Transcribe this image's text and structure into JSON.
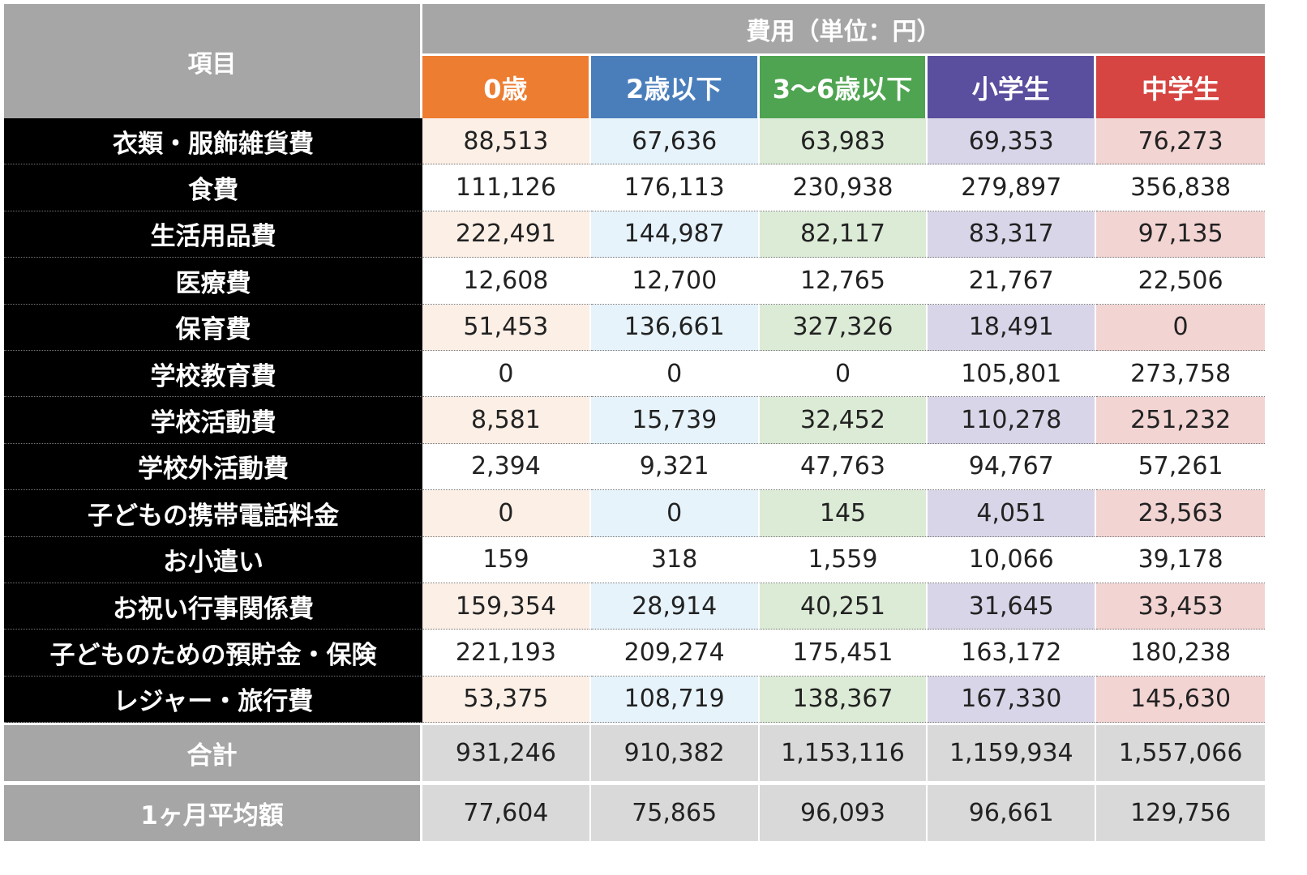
{
  "chart_data": {
    "type": "table",
    "header": {
      "item_label": "項目",
      "cost_label": "費用（単位：円）"
    },
    "columns": [
      {
        "label": "0歳",
        "header_color": "#ed7d31",
        "tint": "#fcefe6"
      },
      {
        "label": "2歳以下",
        "header_color": "#4a7ebb",
        "tint": "#e6f3fb"
      },
      {
        "label": "3〜6歳以下",
        "header_color": "#4ea450",
        "tint": "#dcebd6"
      },
      {
        "label": "小学生",
        "header_color": "#5a4e9e",
        "tint": "#d9d5e8"
      },
      {
        "label": "中学生",
        "header_color": "#d64541",
        "tint": "#f2d4d3"
      }
    ],
    "rows": [
      {
        "label": "衣類・服飾雑貨費",
        "values": [
          "88,513",
          "67,636",
          "63,983",
          "69,353",
          "76,273"
        ]
      },
      {
        "label": "食費",
        "values": [
          "111,126",
          "176,113",
          "230,938",
          "279,897",
          "356,838"
        ]
      },
      {
        "label": "生活用品費",
        "values": [
          "222,491",
          "144,987",
          "82,117",
          "83,317",
          "97,135"
        ]
      },
      {
        "label": "医療費",
        "values": [
          "12,608",
          "12,700",
          "12,765",
          "21,767",
          "22,506"
        ]
      },
      {
        "label": "保育費",
        "values": [
          "51,453",
          "136,661",
          "327,326",
          "18,491",
          "0"
        ]
      },
      {
        "label": "学校教育費",
        "values": [
          "0",
          "0",
          "0",
          "105,801",
          "273,758"
        ]
      },
      {
        "label": "学校活動費",
        "values": [
          "8,581",
          "15,739",
          "32,452",
          "110,278",
          "251,232"
        ]
      },
      {
        "label": "学校外活動費",
        "values": [
          "2,394",
          "9,321",
          "47,763",
          "94,767",
          "57,261"
        ]
      },
      {
        "label": "子どもの携帯電話料金",
        "values": [
          "0",
          "0",
          "145",
          "4,051",
          "23,563"
        ]
      },
      {
        "label": "お小遣い",
        "values": [
          "159",
          "318",
          "1,559",
          "10,066",
          "39,178"
        ]
      },
      {
        "label": "お祝い行事関係費",
        "values": [
          "159,354",
          "28,914",
          "40,251",
          "31,645",
          "33,453"
        ]
      },
      {
        "label": "子どものための預貯金・保険",
        "values": [
          "221,193",
          "209,274",
          "175,451",
          "163,172",
          "180,238"
        ]
      },
      {
        "label": "レジャー・旅行費",
        "values": [
          "53,375",
          "108,719",
          "138,367",
          "167,330",
          "145,630"
        ]
      }
    ],
    "summary_rows": [
      {
        "label": "合計",
        "values": [
          "931,246",
          "910,382",
          "1,153,116",
          "1,159,934",
          "1,557,066"
        ]
      },
      {
        "label": "1ヶ月平均額",
        "values": [
          "77,604",
          "75,865",
          "96,093",
          "96,661",
          "129,756"
        ]
      }
    ]
  }
}
